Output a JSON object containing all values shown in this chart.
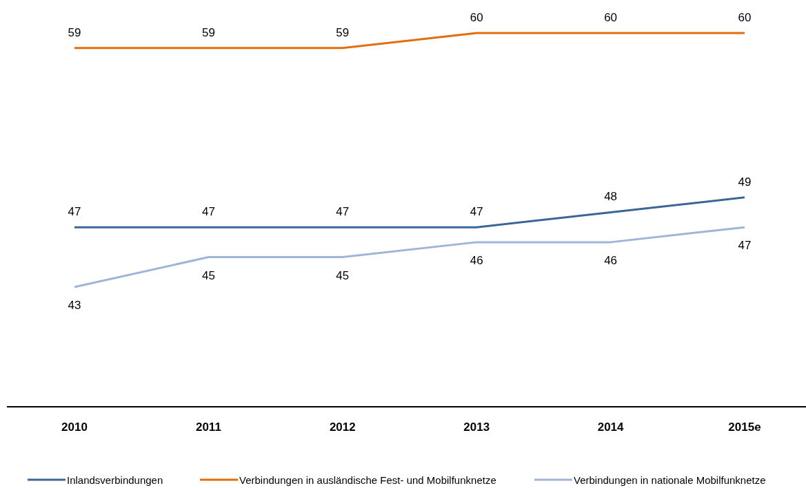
{
  "chart_data": {
    "type": "line",
    "categories": [
      "2010",
      "2011",
      "2012",
      "2013",
      "2014",
      "2015e"
    ],
    "series": [
      {
        "name": "Inlandsverbindungen",
        "color": "#3a6599",
        "values": [
          47,
          47,
          47,
          47,
          48,
          49
        ]
      },
      {
        "name": "Verbindungen in ausländische Fest- und Mobilfunknetze",
        "color": "#e46c0a",
        "values": [
          59,
          59,
          59,
          60,
          60,
          60
        ]
      },
      {
        "name": "Verbindungen in nationale Mobilfunknetze",
        "color": "#a0b4d9",
        "values": [
          43,
          45,
          45,
          46,
          46,
          47
        ]
      }
    ],
    "tick_labels": "x",
    "data_labels": true,
    "legend": "bottom",
    "marker": "none",
    "line_style": "solid"
  }
}
